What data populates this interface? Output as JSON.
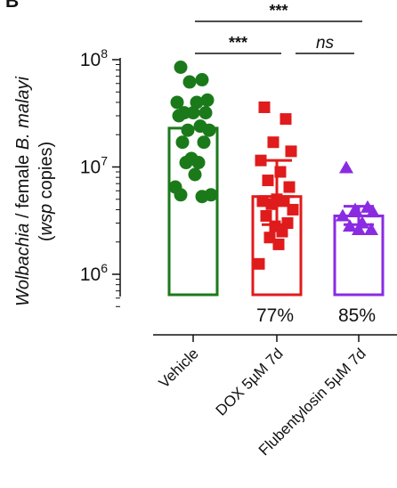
{
  "panel_letter": "B",
  "chart_data": {
    "type": "bar",
    "scale": "log",
    "ylim": [
      500000,
      100000000
    ],
    "yticks": [
      {
        "base": "10",
        "exp": "8",
        "value": 100000000
      },
      {
        "base": "10",
        "exp": "7",
        "value": 10000000
      },
      {
        "base": "10",
        "exp": "6",
        "value": 1000000
      }
    ],
    "ylabel": {
      "part1": "Wolbachia",
      "part2": " / female ",
      "part3": "B. malayi",
      "line2_open": "(",
      "line2_italic": "wsp",
      "line2_rest": " copies)"
    },
    "categories": [
      "Vehicle",
      "DOX 5µM 7d",
      "Flubentylosin 5µM 7d"
    ],
    "colors": [
      "#1a7a1a",
      "#e01b1b",
      "#8a2be2"
    ],
    "markers": [
      "circle",
      "square",
      "triangle"
    ],
    "bar_means": [
      23000000,
      5300000,
      3500000
    ],
    "error_bars": [
      {
        "low": 23000000,
        "high": 23000000
      },
      {
        "low": 2900000,
        "high": 11500000
      },
      {
        "low": 2900000,
        "high": 4300000
      }
    ],
    "points": [
      [
        85000000,
        65000000,
        62000000,
        42000000,
        40000000,
        40000000,
        32000000,
        32000000,
        32000000,
        30000000,
        24000000,
        22000000,
        22000000,
        17000000,
        17000000,
        12000000,
        11000000,
        11000000,
        8500000,
        6500000,
        5500000,
        5500000,
        5300000
      ],
      [
        36000000,
        28000000,
        17000000,
        14000000,
        11500000,
        9000000,
        7500000,
        6500000,
        5000000,
        4800000,
        4800000,
        4500000,
        4000000,
        3500000,
        3000000,
        2800000,
        2500000,
        2200000,
        1900000,
        1250000
      ],
      [
        9800000,
        4200000,
        4000000,
        3800000,
        3500000,
        3000000,
        2800000,
        2600000,
        2600000
      ]
    ],
    "percent_labels": [
      "",
      "77%",
      "85%"
    ],
    "significance": [
      {
        "from": 0,
        "to": 1,
        "label": "***",
        "style": "bold"
      },
      {
        "from": 1,
        "to": 2,
        "label": "ns",
        "style": "italic"
      },
      {
        "from": 0,
        "to": 2,
        "label": "***",
        "style": "bold"
      }
    ]
  }
}
